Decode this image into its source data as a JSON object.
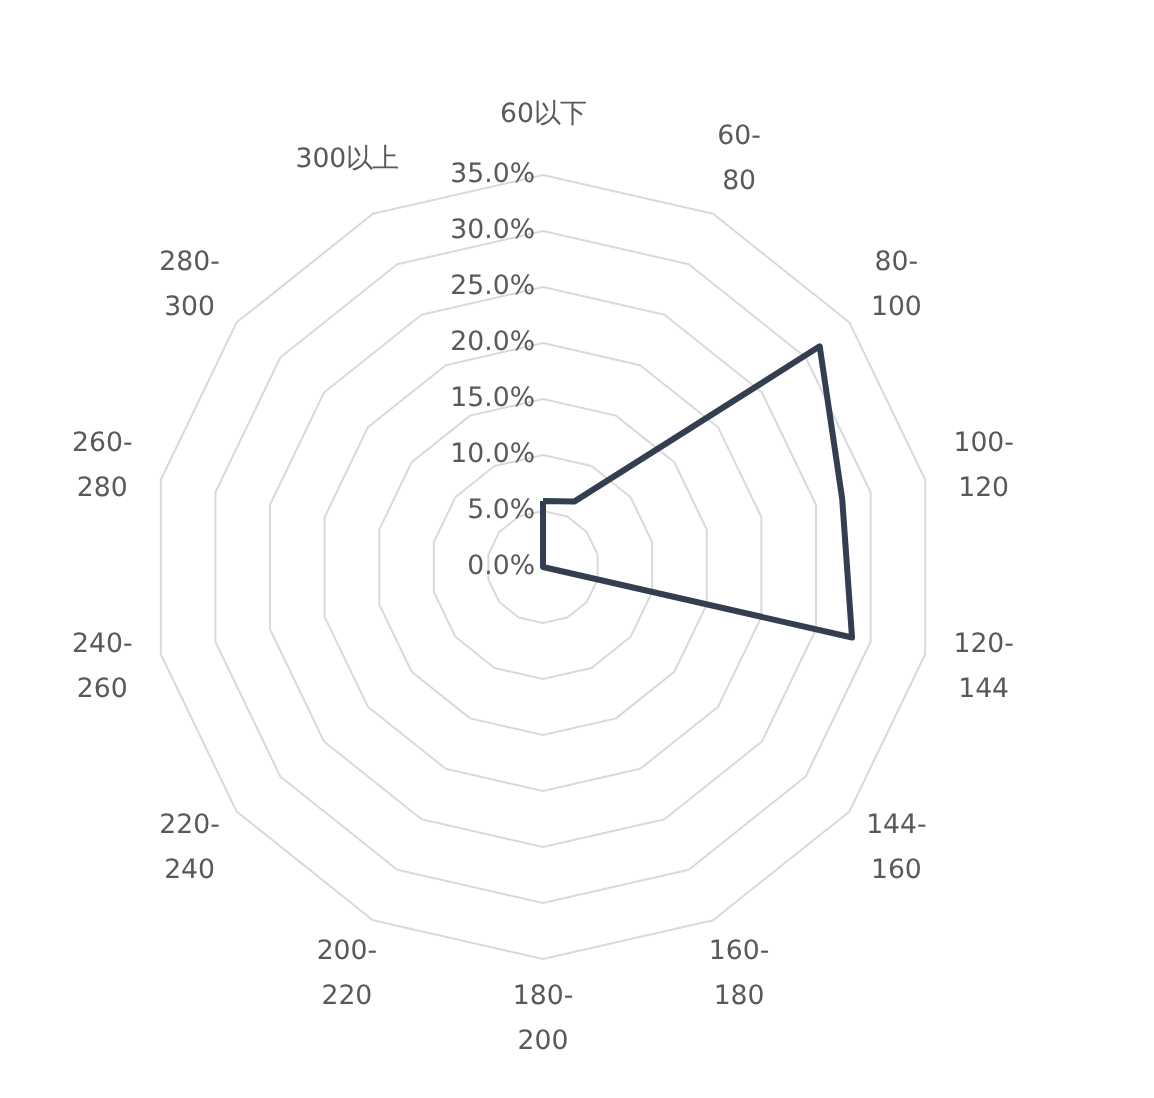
{
  "chart_data": {
    "type": "radar",
    "categories": [
      "60以下",
      "60-80",
      "80-100",
      "100-120",
      "120-144",
      "144-160",
      "160-180",
      "180-200",
      "200-220",
      "220-240",
      "240-260",
      "260-280",
      "280-300",
      "300以上"
    ],
    "series": [
      {
        "color": "#333f50",
        "values": [
          5.9,
          6.5,
          31.6,
          27.4,
          28.3,
          0,
          0,
          0,
          0,
          0,
          0,
          0,
          0,
          0
        ]
      }
    ],
    "ylim": [
      0,
      35
    ],
    "yticks": [
      {
        "value": 0,
        "label": "0.0%"
      },
      {
        "value": 5,
        "label": "5.0%"
      },
      {
        "value": 10,
        "label": "10.0%"
      },
      {
        "value": 15,
        "label": "15.0%"
      },
      {
        "value": 20,
        "label": "20.0%"
      },
      {
        "value": 25,
        "label": "25.0%"
      },
      {
        "value": 30,
        "label": "30.0%"
      },
      {
        "value": 35,
        "label": "35.0%"
      }
    ],
    "grid": true,
    "marker": "none"
  }
}
